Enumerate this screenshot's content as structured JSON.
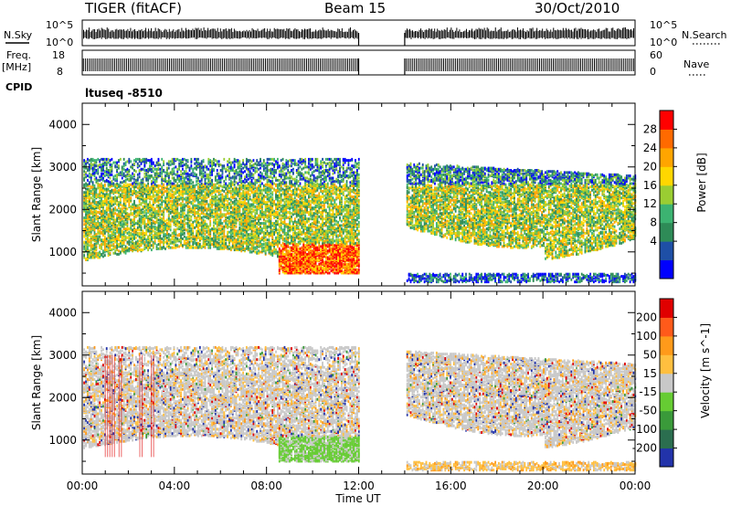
{
  "header": {
    "station": "TIGER (fitACF)",
    "beam": "Beam 15",
    "date": "30/Oct/2010"
  },
  "summary_panels": {
    "nsky_label": "N.Sky",
    "nsky_ticks": [
      "10^5",
      "10^0"
    ],
    "nsearch_label": "N.Search",
    "freq_label_1": "Freq.",
    "freq_label_2": "[MHz]",
    "freq_ticks": [
      "18",
      "8"
    ],
    "nave_label": "Nave",
    "nave_ticks": [
      "60",
      "0"
    ],
    "cpid_label": "CPID",
    "cpid_value": "ltuseq -8510"
  },
  "chart_data": [
    {
      "type": "heatmap",
      "name": "power",
      "ylabel": "Slant Range [km]",
      "xlabel": "Time UT",
      "x_tick_labels": [
        "00:00",
        "04:00",
        "08:00",
        "12:00",
        "16:00",
        "20:00",
        "00:00"
      ],
      "x_range_hours": [
        0,
        24
      ],
      "y_tick_labels": [
        "1000",
        "2000",
        "3000",
        "4000"
      ],
      "y_range_km": [
        200,
        4500
      ],
      "data_gap_hours": [
        12,
        14
      ],
      "colorbar": {
        "label": "Power [dB]",
        "tick_labels": [
          "28",
          "24",
          "20",
          "16",
          "12",
          "8",
          "4"
        ],
        "colors": [
          "#0000ff",
          "#1e4fa6",
          "#2e8b57",
          "#3cb371",
          "#9acd32",
          "#ffd700",
          "#ffa500",
          "#ff6a00",
          "#ff0000"
        ]
      }
    },
    {
      "type": "heatmap",
      "name": "velocity",
      "ylabel": "Slant Range [km]",
      "xlabel": "Time UT",
      "x_tick_labels": [
        "00:00",
        "04:00",
        "08:00",
        "12:00",
        "16:00",
        "20:00",
        "00:00"
      ],
      "x_range_hours": [
        0,
        24
      ],
      "y_tick_labels": [
        "1000",
        "2000",
        "3000",
        "4000"
      ],
      "y_range_km": [
        200,
        4500
      ],
      "data_gap_hours": [
        12,
        14
      ],
      "colorbar": {
        "label": "Velocity [m s^-1]",
        "tick_labels": [
          "200",
          "100",
          "50",
          "15",
          "-15",
          "-50",
          "-100",
          "-200"
        ],
        "colors": [
          "#2233aa",
          "#2b6e4f",
          "#3a9a3a",
          "#66cc33",
          "#c8c8c8",
          "#ffbf3f",
          "#ff9a1a",
          "#ff5a1a",
          "#e00000"
        ]
      }
    }
  ],
  "x_axis_title": "Time UT"
}
